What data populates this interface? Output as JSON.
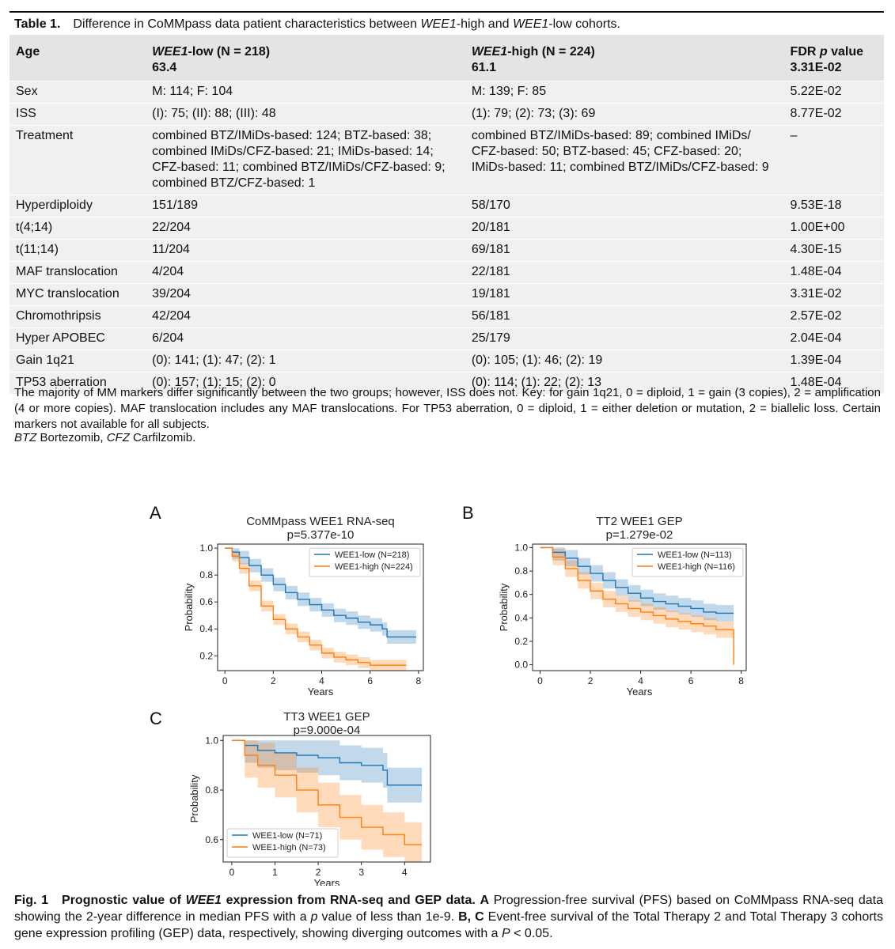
{
  "table": {
    "label": "Table 1.",
    "caption": "Difference in CoMMpass data patient characteristics between WEE1-high and WEE1-low cohorts.",
    "caption_prefix": "Difference in CoMMpass data patient characteristics between ",
    "caption_g1": "WEE1",
    "caption_mid": "-high and ",
    "caption_g2": "WEE1",
    "caption_suffix": "-low cohorts.",
    "header": {
      "col1": "Age",
      "col2_gene": "WEE1",
      "col2_rest": "-low (N = 218)",
      "col2_val": "63.4",
      "col3_gene": "WEE1",
      "col3_rest": "-high (N = 224)",
      "col3_val": "61.1",
      "col4_a": "FDR ",
      "col4_b": "p",
      "col4_c": " value",
      "col4_val": "3.31E-02"
    },
    "rows": [
      {
        "label": "Sex",
        "low": "M: 114; F: 104",
        "high": "M: 139; F: 85",
        "fdr": "5.22E-02"
      },
      {
        "label": "ISS",
        "low": "(I): 75; (II): 88; (III): 48",
        "high": "(1): 79; (2): 73; (3): 69",
        "fdr": "8.77E-02"
      },
      {
        "label": "Treatment",
        "low": "combined BTZ/IMiDs-based: 124; BTZ-based: 38; combined IMiDs/CFZ-based: 21; IMiDs-based: 14; CFZ-based: 11; combined BTZ/IMiDs/CFZ-based: 9; combined BTZ/CFZ-based: 1",
        "high": "combined BTZ/IMiDs-based: 89; combined IMiDs/ CFZ-based: 50; BTZ-based: 45; CFZ-based: 20; IMiDs-based: 11; combined BTZ/IMiDs/CFZ-based: 9",
        "fdr": "–"
      },
      {
        "label": "Hyperdiploidy",
        "low": "151/189",
        "high": "58/170",
        "fdr": "9.53E-18"
      },
      {
        "label": "t(4;14)",
        "low": "22/204",
        "high": "20/181",
        "fdr": "1.00E+00"
      },
      {
        "label": "t(11;14)",
        "low": "11/204",
        "high": "69/181",
        "fdr": "4.30E-15"
      },
      {
        "label": "MAF translocation",
        "low": "4/204",
        "high": "22/181",
        "fdr": "1.48E-04"
      },
      {
        "label": "MYC translocation",
        "low": "39/204",
        "high": "19/181",
        "fdr": "3.31E-02"
      },
      {
        "label": "Chromothripsis",
        "low": "42/204",
        "high": "56/181",
        "fdr": "2.57E-02"
      },
      {
        "label": "Hyper APOBEC",
        "low": "6/204",
        "high": "25/179",
        "fdr": "2.04E-04"
      },
      {
        "label": "Gain 1q21",
        "low": "(0): 141; (1): 47; (2): 1",
        "high": "(0): 105; (1): 46; (2): 19",
        "fdr": "1.39E-04"
      },
      {
        "label": "TP53 aberration",
        "low": "(0): 157; (1): 15; (2): 0",
        "high": "(0): 114; (1): 22; (2): 13",
        "fdr": "1.48E-04"
      }
    ],
    "footnote": "The majority of MM markers differ significantly between the two groups; however, ISS does not. Key: for gain 1q21, 0 = diploid, 1 = gain (3 copies), 2 = amplification (4 or more copies). MAF translocation includes any MAF translocations. For TP53 aberration, 0 = diploid, 1 = either deletion or mutation, 2 = biallelic loss. Certain markers not available for all subjects.",
    "abbrev_btz": "BTZ",
    "abbrev_btz_text": " Bortezomib, ",
    "abbrev_cfz": "CFZ",
    "abbrev_cfz_text": " Carfilzomib."
  },
  "figure": {
    "panel_letters": [
      "A",
      "B",
      "C"
    ],
    "caption_label": "Fig. 1",
    "caption_title_a": "Prognostic value of ",
    "caption_title_gene": "WEE1",
    "caption_title_b": " expression from RNA-seq and GEP data.",
    "caption_A": "A",
    "caption_A_text": " Progression-free survival (PFS) based on CoMMpass RNA-seq data showing the 2-year difference in median PFS with a ",
    "caption_p": "p",
    "caption_A_text2": " value of less than 1e-9. ",
    "caption_BC": "B, C",
    "caption_BC_text": " Event-free survival of the Total Therapy 2 and Total Therapy 3 cohorts gene expression profiling (GEP) data, respectively, showing diverging outcomes with a ",
    "caption_P": "P",
    "caption_end": " < 0.05."
  },
  "colors": {
    "low": "#1f77b4",
    "high": "#ff7f0e"
  },
  "chart_data": [
    {
      "type": "line",
      "panel": "A",
      "title": "CoMMpass WEE1 RNA-seq",
      "subtitle": "p=5.377e-10",
      "xlabel": "Years",
      "ylabel": "Probability",
      "xlim": [
        -0.3,
        8.2
      ],
      "ylim": [
        0.09,
        1.03
      ],
      "xticks": [
        "0",
        "2",
        "4",
        "6",
        "8"
      ],
      "xtick_values": [
        0,
        2,
        4,
        6,
        8
      ],
      "yticks": [
        "0.2",
        "0.4",
        "0.6",
        "0.8",
        "1.0"
      ],
      "ytick_values": [
        0.2,
        0.4,
        0.6,
        0.8,
        1.0
      ],
      "legend": "top-right",
      "series": [
        {
          "name": "WEE1-low (N=218)",
          "color": "#1f77b4",
          "ci": 0.05,
          "x": [
            0,
            0.3,
            0.6,
            1.0,
            1.5,
            2.0,
            2.5,
            3.0,
            3.5,
            4.0,
            4.5,
            5.0,
            5.5,
            6.0,
            6.5,
            6.7,
            7.3,
            7.9
          ],
          "y": [
            1.0,
            0.97,
            0.93,
            0.87,
            0.8,
            0.73,
            0.67,
            0.62,
            0.58,
            0.54,
            0.5,
            0.48,
            0.45,
            0.43,
            0.4,
            0.34,
            0.34,
            0.34
          ]
        },
        {
          "name": "WEE1-high (N=224)",
          "color": "#ff7f0e",
          "ci": 0.04,
          "x": [
            0,
            0.3,
            0.6,
            1.0,
            1.5,
            2.0,
            2.5,
            3.0,
            3.5,
            4.0,
            4.5,
            5.0,
            5.5,
            6.0,
            6.5,
            7.0,
            7.5
          ],
          "y": [
            1.0,
            0.94,
            0.85,
            0.72,
            0.57,
            0.47,
            0.4,
            0.34,
            0.28,
            0.22,
            0.19,
            0.17,
            0.15,
            0.13,
            0.13,
            0.13,
            0.13
          ]
        }
      ]
    },
    {
      "type": "line",
      "panel": "B",
      "title": "TT2 WEE1 GEP",
      "subtitle": "p=1.279e-02",
      "xlabel": "Years",
      "ylabel": "Probability",
      "xlim": [
        -0.3,
        8.2
      ],
      "ylim": [
        -0.05,
        1.03
      ],
      "xticks": [
        "0",
        "2",
        "4",
        "6",
        "8"
      ],
      "xtick_values": [
        0,
        2,
        4,
        6,
        8
      ],
      "yticks": [
        "0.0",
        "0.2",
        "0.4",
        "0.6",
        "0.8",
        "1.0"
      ],
      "ytick_values": [
        0.0,
        0.2,
        0.4,
        0.6,
        0.8,
        1.0
      ],
      "legend": "top-right",
      "series": [
        {
          "name": "WEE1-low (N=113)",
          "color": "#1f77b4",
          "ci": 0.07,
          "x": [
            0,
            0.5,
            1.0,
            1.5,
            2.0,
            2.5,
            3.0,
            3.5,
            4.0,
            4.5,
            5.0,
            5.5,
            6.0,
            6.5,
            7.0,
            7.7
          ],
          "y": [
            1.0,
            0.96,
            0.91,
            0.84,
            0.78,
            0.72,
            0.66,
            0.61,
            0.57,
            0.54,
            0.52,
            0.5,
            0.48,
            0.45,
            0.44,
            0.44
          ]
        },
        {
          "name": "WEE1-high (N=116)",
          "color": "#ff7f0e",
          "ci": 0.07,
          "x": [
            0,
            0.5,
            1.0,
            1.5,
            2.0,
            2.5,
            3.0,
            3.5,
            4.0,
            4.5,
            5.0,
            5.5,
            6.0,
            6.5,
            7.0,
            7.6,
            7.7
          ],
          "y": [
            1.0,
            0.92,
            0.82,
            0.72,
            0.63,
            0.56,
            0.52,
            0.48,
            0.45,
            0.42,
            0.39,
            0.37,
            0.35,
            0.33,
            0.3,
            0.3,
            0.0
          ]
        }
      ]
    },
    {
      "type": "line",
      "panel": "C",
      "title": "TT3 WEE1 GEP",
      "subtitle": "p=9.000e-04",
      "xlabel": "Years",
      "ylabel": "Probability",
      "xlim": [
        -0.2,
        4.6
      ],
      "ylim": [
        0.51,
        1.02
      ],
      "xticks": [
        "0",
        "1",
        "2",
        "3",
        "4"
      ],
      "xtick_values": [
        0,
        1,
        2,
        3,
        4
      ],
      "yticks": [
        "0.6",
        "0.8",
        "1.0"
      ],
      "ytick_values": [
        0.6,
        0.8,
        1.0
      ],
      "legend": "bottom-left",
      "series": [
        {
          "name": "WEE1-low (N=71)",
          "color": "#1f77b4",
          "ci": 0.07,
          "x": [
            0,
            0.3,
            0.6,
            1.0,
            1.5,
            2.0,
            2.5,
            3.0,
            3.5,
            3.6,
            4.0,
            4.4
          ],
          "y": [
            1.0,
            0.98,
            0.96,
            0.95,
            0.94,
            0.93,
            0.91,
            0.9,
            0.88,
            0.82,
            0.82,
            0.82
          ]
        },
        {
          "name": "WEE1-high (N=73)",
          "color": "#ff7f0e",
          "ci": 0.09,
          "x": [
            0,
            0.3,
            0.6,
            1.0,
            1.5,
            2.0,
            2.5,
            3.0,
            3.5,
            4.0,
            4.4
          ],
          "y": [
            1.0,
            0.94,
            0.9,
            0.86,
            0.8,
            0.74,
            0.69,
            0.65,
            0.62,
            0.58,
            0.58
          ]
        }
      ]
    }
  ]
}
